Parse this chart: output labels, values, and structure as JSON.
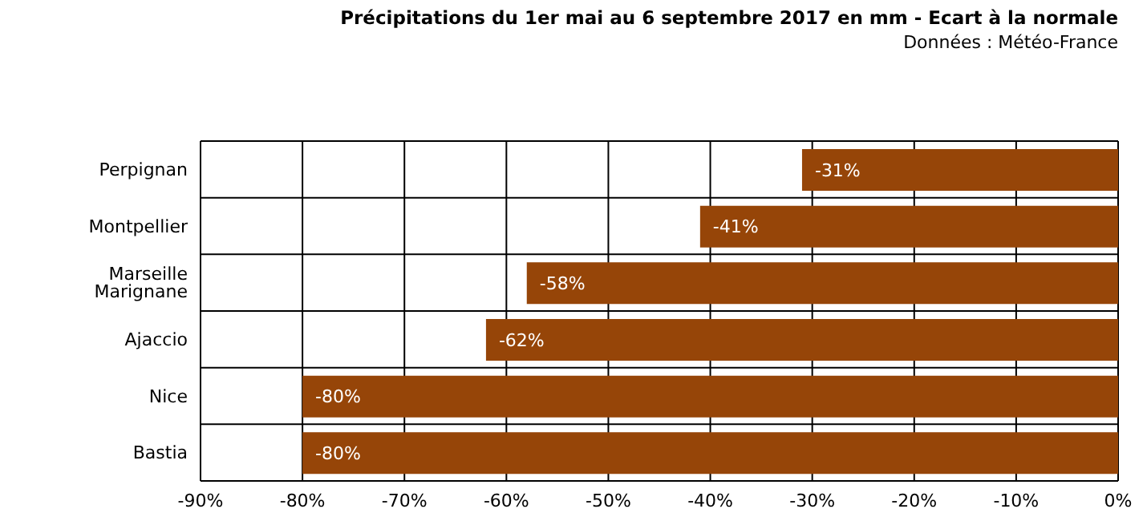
{
  "chart_data": {
    "type": "bar",
    "orientation": "horizontal",
    "title": "Précipitations du 1er mai au 6 septembre 2017 en mm - Ecart à la normale",
    "subtitle": "Données : Météo-France",
    "categories": [
      "Perpignan",
      "Montpellier",
      "Marseille Marignane",
      "Ajaccio",
      "Nice",
      "Bastia"
    ],
    "values": [
      -31,
      -41,
      -58,
      -62,
      -80,
      -80
    ],
    "value_labels": [
      "-31%",
      "-41%",
      "-58%",
      "-62%",
      "-80%",
      "-80%"
    ],
    "color": "#964508",
    "xlim": [
      -90,
      0
    ],
    "xticks": [
      {
        "value": -90,
        "label": "-90%"
      },
      {
        "value": -80,
        "label": "-80%"
      },
      {
        "value": -70,
        "label": "-70%"
      },
      {
        "value": -60,
        "label": "-60%"
      },
      {
        "value": -50,
        "label": "-50%"
      },
      {
        "value": -40,
        "label": "-40%"
      },
      {
        "value": -30,
        "label": "-30%"
      },
      {
        "value": -20,
        "label": "-20%"
      },
      {
        "value": -10,
        "label": "-10%"
      },
      {
        "value": 0,
        "label": "0%"
      }
    ],
    "grid": true
  }
}
